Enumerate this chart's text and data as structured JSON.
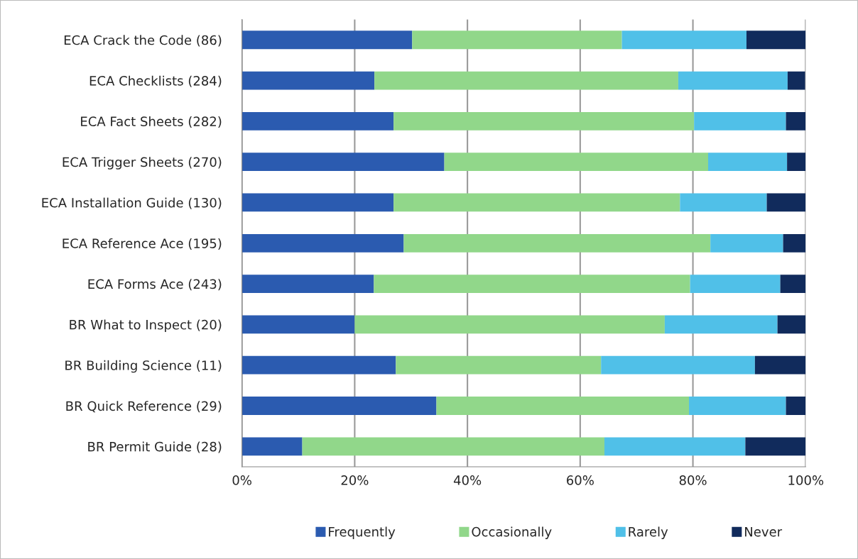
{
  "chart_data": {
    "type": "bar",
    "orientation": "horizontal",
    "stacked": true,
    "categories": [
      "ECA Crack the Code (86)",
      "ECA Checklists (284)",
      "ECA Fact Sheets (282)",
      "ECA Trigger Sheets (270)",
      "ECA Installation Guide (130)",
      "ECA Reference Ace (195)",
      "ECA Forms Ace (243)",
      "BR What to Inspect (20)",
      "BR Building Science (11)",
      "BR Quick Reference (29)",
      "BR Permit Guide (28)"
    ],
    "series": [
      {
        "name": "Frequently",
        "color": "#2b5bb0",
        "values": [
          30.2,
          23.5,
          26.9,
          35.9,
          26.9,
          28.7,
          23.4,
          20.0,
          27.3,
          34.5,
          10.7
        ]
      },
      {
        "name": "Occasionally",
        "color": "#91d78a",
        "values": [
          37.2,
          53.9,
          53.3,
          46.8,
          50.8,
          54.4,
          56.1,
          55.0,
          36.4,
          44.8,
          53.6
        ]
      },
      {
        "name": "Rarely",
        "color": "#50c0e8",
        "values": [
          22.1,
          19.4,
          16.3,
          14.0,
          15.4,
          12.9,
          16.0,
          20.0,
          27.3,
          17.2,
          25.0
        ]
      },
      {
        "name": "Never",
        "color": "#112b5c",
        "values": [
          10.5,
          3.1,
          3.5,
          3.3,
          6.9,
          4.0,
          4.5,
          5.0,
          9.0,
          3.5,
          10.7
        ]
      }
    ],
    "xlim": [
      0,
      100
    ],
    "xticks": [
      {
        "value": 0,
        "label": "0%"
      },
      {
        "value": 20,
        "label": "20%"
      },
      {
        "value": 40,
        "label": "40%"
      },
      {
        "value": 60,
        "label": "60%"
      },
      {
        "value": 80,
        "label": "80%"
      },
      {
        "value": 100,
        "label": "100%"
      }
    ],
    "grid": "x",
    "legend": "bottom"
  }
}
